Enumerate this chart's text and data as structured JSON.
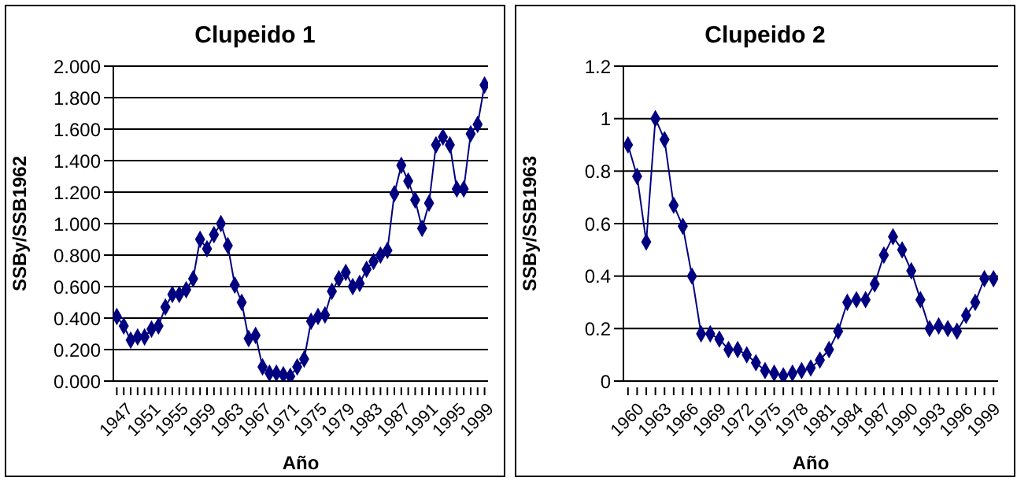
{
  "chart_data": [
    {
      "type": "line",
      "title": "Clupeido 1",
      "xlabel": "Año",
      "ylabel": "SSBy/SSB1962",
      "x": [
        1947,
        1948,
        1949,
        1950,
        1951,
        1952,
        1953,
        1954,
        1955,
        1956,
        1957,
        1958,
        1959,
        1960,
        1961,
        1962,
        1963,
        1964,
        1965,
        1966,
        1967,
        1968,
        1969,
        1970,
        1971,
        1972,
        1973,
        1974,
        1975,
        1976,
        1977,
        1978,
        1979,
        1980,
        1981,
        1982,
        1983,
        1984,
        1985,
        1986,
        1987,
        1988,
        1989,
        1990,
        1991,
        1992,
        1993,
        1994,
        1995,
        1996,
        1997,
        1998,
        1999,
        2000
      ],
      "values": [
        0.41,
        0.35,
        0.26,
        0.28,
        0.28,
        0.33,
        0.35,
        0.47,
        0.55,
        0.55,
        0.58,
        0.65,
        0.9,
        0.84,
        0.93,
        1.0,
        0.86,
        0.61,
        0.5,
        0.27,
        0.29,
        0.09,
        0.05,
        0.05,
        0.04,
        0.03,
        0.09,
        0.14,
        0.38,
        0.41,
        0.42,
        0.57,
        0.65,
        0.69,
        0.6,
        0.62,
        0.71,
        0.76,
        0.8,
        0.83,
        1.19,
        1.37,
        1.27,
        1.15,
        0.97,
        1.13,
        1.5,
        1.55,
        1.5,
        1.22,
        1.22,
        1.57,
        1.63,
        1.88
      ],
      "color": "#000080",
      "marker": "diamond",
      "grid": "y",
      "xlim": [
        1946.5,
        2000.5
      ],
      "xticks": [
        1947,
        {
          "value": 1948,
          "label": null
        },
        {
          "value": 1949,
          "label": null
        },
        {
          "value": 1950,
          "label": null
        },
        1951,
        {
          "value": 1952,
          "label": null
        },
        {
          "value": 1953,
          "label": null
        },
        {
          "value": 1954,
          "label": null
        },
        1955,
        {
          "value": 1956,
          "label": null
        },
        {
          "value": 1957,
          "label": null
        },
        {
          "value": 1958,
          "label": null
        },
        1959,
        {
          "value": 1960,
          "label": null
        },
        {
          "value": 1961,
          "label": null
        },
        {
          "value": 1962,
          "label": null
        },
        1963,
        {
          "value": 1964,
          "label": null
        },
        {
          "value": 1965,
          "label": null
        },
        {
          "value": 1966,
          "label": null
        },
        1967,
        {
          "value": 1968,
          "label": null
        },
        {
          "value": 1969,
          "label": null
        },
        {
          "value": 1970,
          "label": null
        },
        1971,
        {
          "value": 1972,
          "label": null
        },
        {
          "value": 1973,
          "label": null
        },
        {
          "value": 1974,
          "label": null
        },
        1975,
        {
          "value": 1976,
          "label": null
        },
        {
          "value": 1977,
          "label": null
        },
        {
          "value": 1978,
          "label": null
        },
        1979,
        {
          "value": 1980,
          "label": null
        },
        {
          "value": 1981,
          "label": null
        },
        {
          "value": 1982,
          "label": null
        },
        1983,
        {
          "value": 1984,
          "label": null
        },
        {
          "value": 1985,
          "label": null
        },
        {
          "value": 1986,
          "label": null
        },
        1987,
        {
          "value": 1988,
          "label": null
        },
        {
          "value": 1989,
          "label": null
        },
        {
          "value": 1990,
          "label": null
        },
        1991,
        {
          "value": 1992,
          "label": null
        },
        {
          "value": 1993,
          "label": null
        },
        {
          "value": 1994,
          "label": null
        },
        1995,
        {
          "value": 1996,
          "label": null
        },
        {
          "value": 1997,
          "label": null
        },
        {
          "value": 1998,
          "label": null
        },
        1999,
        {
          "value": 2000,
          "label": null
        }
      ],
      "ylim": [
        0,
        2
      ],
      "yticks": [
        {
          "value": 0,
          "label": "0.000"
        },
        {
          "value": 0.2,
          "label": "0.200"
        },
        {
          "value": 0.4,
          "label": "0.400"
        },
        {
          "value": 0.6,
          "label": "0.600"
        },
        {
          "value": 0.8,
          "label": "0.800"
        },
        {
          "value": 1,
          "label": "1.000"
        },
        {
          "value": 1.2,
          "label": "1.200"
        },
        {
          "value": 1.4,
          "label": "1.400"
        },
        {
          "value": 1.6,
          "label": "1.600"
        },
        {
          "value": 1.8,
          "label": "1.800"
        },
        {
          "value": 2,
          "label": "2.000"
        }
      ]
    },
    {
      "type": "line",
      "title": "Clupeido 2",
      "xlabel": "Año",
      "ylabel": "SSBy/SSB1963",
      "x": [
        1960,
        1961,
        1962,
        1963,
        1964,
        1965,
        1966,
        1967,
        1968,
        1969,
        1970,
        1971,
        1972,
        1973,
        1974,
        1975,
        1976,
        1977,
        1978,
        1979,
        1980,
        1981,
        1982,
        1983,
        1984,
        1985,
        1986,
        1987,
        1988,
        1989,
        1990,
        1991,
        1992,
        1993,
        1994,
        1995,
        1996,
        1997,
        1998,
        1999,
        2000
      ],
      "values": [
        0.9,
        0.78,
        0.53,
        1.0,
        0.92,
        0.67,
        0.59,
        0.4,
        0.18,
        0.18,
        0.16,
        0.12,
        0.12,
        0.1,
        0.07,
        0.04,
        0.03,
        0.02,
        0.03,
        0.04,
        0.05,
        0.08,
        0.12,
        0.19,
        0.3,
        0.31,
        0.31,
        0.37,
        0.48,
        0.55,
        0.5,
        0.42,
        0.31,
        0.2,
        0.21,
        0.2,
        0.19,
        0.25,
        0.3,
        0.39,
        0.39
      ],
      "color": "#000080",
      "marker": "diamond",
      "grid": "y",
      "xlim": [
        1959.5,
        2000.5
      ],
      "xticks": [
        1960,
        {
          "value": 1961,
          "label": null
        },
        {
          "value": 1962,
          "label": null
        },
        1963,
        {
          "value": 1964,
          "label": null
        },
        {
          "value": 1965,
          "label": null
        },
        1966,
        {
          "value": 1967,
          "label": null
        },
        {
          "value": 1968,
          "label": null
        },
        1969,
        {
          "value": 1970,
          "label": null
        },
        {
          "value": 1971,
          "label": null
        },
        1972,
        {
          "value": 1973,
          "label": null
        },
        {
          "value": 1974,
          "label": null
        },
        1975,
        {
          "value": 1976,
          "label": null
        },
        {
          "value": 1977,
          "label": null
        },
        1978,
        {
          "value": 1979,
          "label": null
        },
        {
          "value": 1980,
          "label": null
        },
        1981,
        {
          "value": 1982,
          "label": null
        },
        {
          "value": 1983,
          "label": null
        },
        1984,
        {
          "value": 1985,
          "label": null
        },
        {
          "value": 1986,
          "label": null
        },
        1987,
        {
          "value": 1988,
          "label": null
        },
        {
          "value": 1989,
          "label": null
        },
        1990,
        {
          "value": 1991,
          "label": null
        },
        {
          "value": 1992,
          "label": null
        },
        1993,
        {
          "value": 1994,
          "label": null
        },
        {
          "value": 1995,
          "label": null
        },
        1996,
        {
          "value": 1997,
          "label": null
        },
        {
          "value": 1998,
          "label": null
        },
        1999,
        {
          "value": 2000,
          "label": null
        }
      ],
      "ylim": [
        0,
        1.2
      ],
      "yticks": [
        0,
        0.2,
        0.4,
        0.6,
        0.8,
        1,
        1.2
      ]
    }
  ]
}
